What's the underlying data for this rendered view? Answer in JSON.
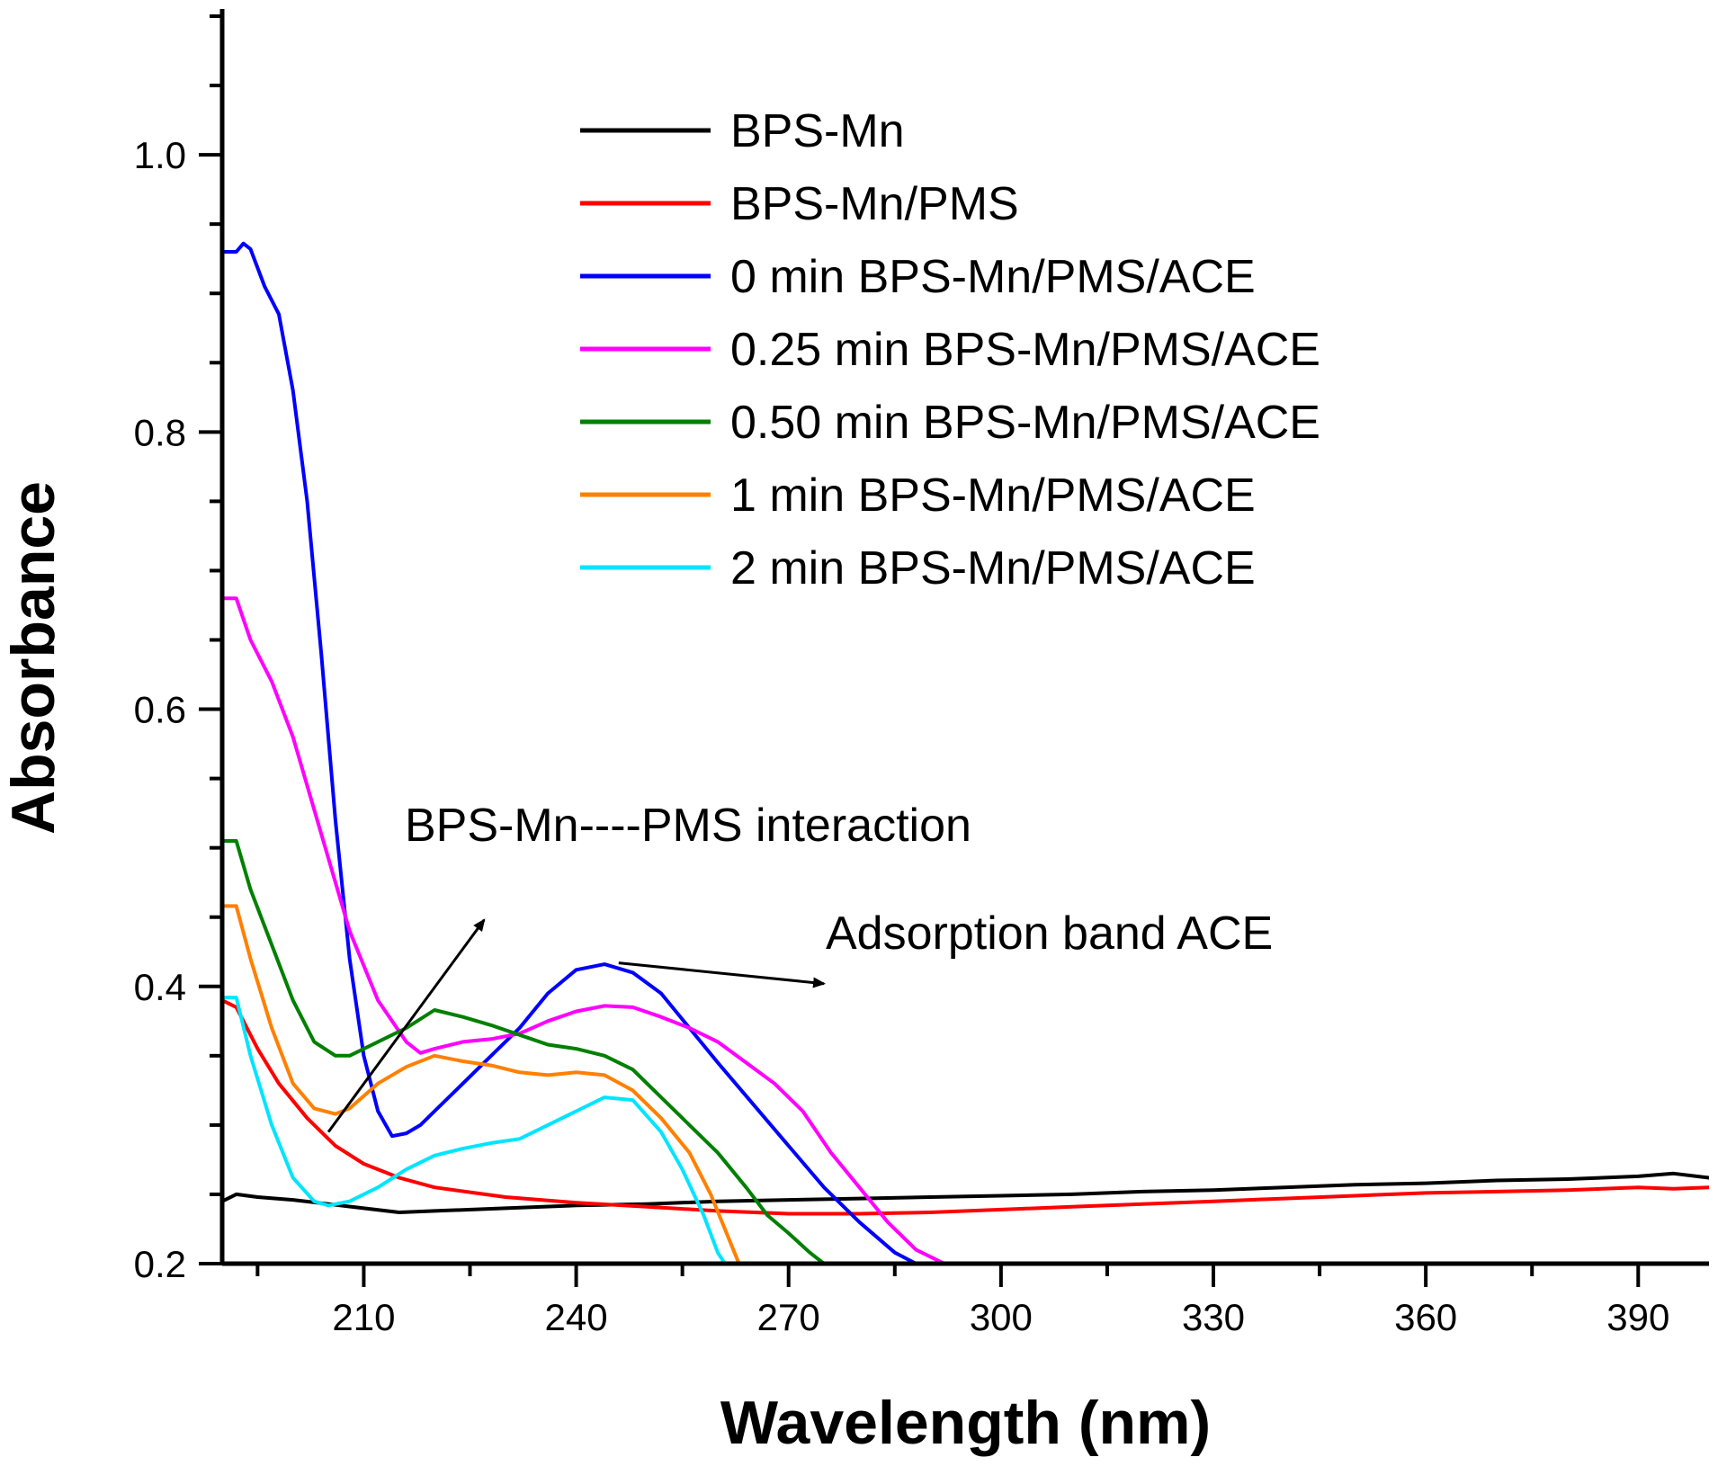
{
  "chart_data": {
    "type": "line",
    "title": "",
    "xlabel": "Wavelength (nm)",
    "ylabel": "Absorbance",
    "xlim": [
      190,
      400
    ],
    "ylim": [
      0.2,
      1.1
    ],
    "xticks": [
      210,
      240,
      270,
      300,
      330,
      360,
      390
    ],
    "yticks": [
      0.2,
      0.4,
      0.6,
      0.8,
      1.0
    ],
    "xtick_labels": [
      "210",
      "240",
      "270",
      "300",
      "330",
      "360",
      "390"
    ],
    "ytick_labels": [
      "0.2",
      "0.4",
      "0.6",
      "0.8",
      "1.0"
    ],
    "grid": false,
    "legend_position": "top-right",
    "series": [
      {
        "name": "BPS-Mn",
        "color": "#000000",
        "points": [
          [
            190,
            0.245
          ],
          [
            192,
            0.25
          ],
          [
            195,
            0.248
          ],
          [
            200,
            0.246
          ],
          [
            205,
            0.243
          ],
          [
            210,
            0.24
          ],
          [
            215,
            0.237
          ],
          [
            220,
            0.238
          ],
          [
            230,
            0.24
          ],
          [
            240,
            0.242
          ],
          [
            250,
            0.243
          ],
          [
            260,
            0.245
          ],
          [
            270,
            0.246
          ],
          [
            280,
            0.247
          ],
          [
            290,
            0.248
          ],
          [
            300,
            0.249
          ],
          [
            310,
            0.25
          ],
          [
            320,
            0.252
          ],
          [
            330,
            0.253
          ],
          [
            340,
            0.255
          ],
          [
            350,
            0.257
          ],
          [
            360,
            0.258
          ],
          [
            370,
            0.26
          ],
          [
            380,
            0.261
          ],
          [
            390,
            0.263
          ],
          [
            395,
            0.265
          ],
          [
            400,
            0.262
          ]
        ]
      },
      {
        "name": "BPS-Mn/PMS",
        "color": "#ff0000",
        "points": [
          [
            190,
            0.39
          ],
          [
            192,
            0.385
          ],
          [
            195,
            0.355
          ],
          [
            198,
            0.33
          ],
          [
            202,
            0.305
          ],
          [
            206,
            0.285
          ],
          [
            210,
            0.272
          ],
          [
            215,
            0.262
          ],
          [
            220,
            0.255
          ],
          [
            230,
            0.248
          ],
          [
            240,
            0.244
          ],
          [
            250,
            0.241
          ],
          [
            260,
            0.238
          ],
          [
            270,
            0.236
          ],
          [
            280,
            0.236
          ],
          [
            290,
            0.237
          ],
          [
            300,
            0.239
          ],
          [
            310,
            0.241
          ],
          [
            320,
            0.243
          ],
          [
            330,
            0.245
          ],
          [
            340,
            0.247
          ],
          [
            350,
            0.249
          ],
          [
            360,
            0.251
          ],
          [
            370,
            0.252
          ],
          [
            380,
            0.253
          ],
          [
            390,
            0.255
          ],
          [
            395,
            0.254
          ],
          [
            400,
            0.255
          ]
        ]
      },
      {
        "name": "0 min BPS-Mn/PMS/ACE",
        "color": "#0000ff",
        "points": [
          [
            190,
            0.93
          ],
          [
            192,
            0.93
          ],
          [
            193,
            0.936
          ],
          [
            194,
            0.932
          ],
          [
            196,
            0.905
          ],
          [
            198,
            0.885
          ],
          [
            200,
            0.83
          ],
          [
            202,
            0.75
          ],
          [
            204,
            0.64
          ],
          [
            206,
            0.52
          ],
          [
            208,
            0.42
          ],
          [
            210,
            0.35
          ],
          [
            212,
            0.31
          ],
          [
            214,
            0.292
          ],
          [
            216,
            0.294
          ],
          [
            218,
            0.3
          ],
          [
            220,
            0.31
          ],
          [
            224,
            0.33
          ],
          [
            228,
            0.35
          ],
          [
            232,
            0.37
          ],
          [
            236,
            0.395
          ],
          [
            240,
            0.412
          ],
          [
            244,
            0.416
          ],
          [
            248,
            0.41
          ],
          [
            252,
            0.395
          ],
          [
            256,
            0.37
          ],
          [
            260,
            0.345
          ],
          [
            265,
            0.315
          ],
          [
            270,
            0.285
          ],
          [
            275,
            0.255
          ],
          [
            280,
            0.23
          ],
          [
            285,
            0.208
          ],
          [
            288,
            0.2
          ]
        ]
      },
      {
        "name": "0.25 min BPS-Mn/PMS/ACE",
        "color": "#ff00ff",
        "points": [
          [
            190,
            0.68
          ],
          [
            192,
            0.68
          ],
          [
            194,
            0.65
          ],
          [
            197,
            0.62
          ],
          [
            200,
            0.58
          ],
          [
            204,
            0.51
          ],
          [
            208,
            0.44
          ],
          [
            212,
            0.39
          ],
          [
            216,
            0.36
          ],
          [
            218,
            0.352
          ],
          [
            220,
            0.355
          ],
          [
            224,
            0.36
          ],
          [
            228,
            0.362
          ],
          [
            232,
            0.366
          ],
          [
            236,
            0.375
          ],
          [
            240,
            0.382
          ],
          [
            244,
            0.386
          ],
          [
            248,
            0.385
          ],
          [
            252,
            0.378
          ],
          [
            256,
            0.37
          ],
          [
            260,
            0.36
          ],
          [
            264,
            0.345
          ],
          [
            268,
            0.33
          ],
          [
            272,
            0.31
          ],
          [
            276,
            0.28
          ],
          [
            280,
            0.255
          ],
          [
            284,
            0.23
          ],
          [
            288,
            0.21
          ],
          [
            292,
            0.2
          ]
        ]
      },
      {
        "name": "0.50 min BPS-Mn/PMS/ACE",
        "color": "#008000",
        "points": [
          [
            190,
            0.505
          ],
          [
            192,
            0.505
          ],
          [
            194,
            0.47
          ],
          [
            197,
            0.43
          ],
          [
            200,
            0.39
          ],
          [
            203,
            0.36
          ],
          [
            206,
            0.35
          ],
          [
            208,
            0.35
          ],
          [
            212,
            0.36
          ],
          [
            216,
            0.37
          ],
          [
            220,
            0.383
          ],
          [
            224,
            0.378
          ],
          [
            228,
            0.372
          ],
          [
            232,
            0.365
          ],
          [
            236,
            0.358
          ],
          [
            240,
            0.355
          ],
          [
            244,
            0.35
          ],
          [
            248,
            0.34
          ],
          [
            252,
            0.32
          ],
          [
            256,
            0.3
          ],
          [
            260,
            0.28
          ],
          [
            264,
            0.255
          ],
          [
            267,
            0.235
          ],
          [
            270,
            0.222
          ],
          [
            273,
            0.208
          ],
          [
            275,
            0.2
          ]
        ]
      },
      {
        "name": "1 min BPS-Mn/PMS/ACE",
        "color": "#ff8000",
        "points": [
          [
            190,
            0.458
          ],
          [
            192,
            0.458
          ],
          [
            194,
            0.42
          ],
          [
            197,
            0.37
          ],
          [
            200,
            0.33
          ],
          [
            203,
            0.312
          ],
          [
            206,
            0.308
          ],
          [
            208,
            0.312
          ],
          [
            212,
            0.33
          ],
          [
            216,
            0.342
          ],
          [
            220,
            0.35
          ],
          [
            224,
            0.346
          ],
          [
            228,
            0.343
          ],
          [
            232,
            0.338
          ],
          [
            236,
            0.336
          ],
          [
            240,
            0.338
          ],
          [
            244,
            0.336
          ],
          [
            248,
            0.325
          ],
          [
            252,
            0.305
          ],
          [
            256,
            0.28
          ],
          [
            259,
            0.25
          ],
          [
            261,
            0.225
          ],
          [
            263,
            0.2
          ]
        ]
      },
      {
        "name": "2 min BPS-Mn/PMS/ACE",
        "color": "#00e5ff",
        "points": [
          [
            190,
            0.392
          ],
          [
            192,
            0.392
          ],
          [
            194,
            0.35
          ],
          [
            197,
            0.3
          ],
          [
            200,
            0.262
          ],
          [
            203,
            0.245
          ],
          [
            205,
            0.242
          ],
          [
            208,
            0.245
          ],
          [
            212,
            0.255
          ],
          [
            216,
            0.268
          ],
          [
            220,
            0.278
          ],
          [
            224,
            0.283
          ],
          [
            228,
            0.287
          ],
          [
            232,
            0.29
          ],
          [
            236,
            0.3
          ],
          [
            240,
            0.31
          ],
          [
            244,
            0.32
          ],
          [
            248,
            0.318
          ],
          [
            252,
            0.295
          ],
          [
            255,
            0.268
          ],
          [
            258,
            0.235
          ],
          [
            260,
            0.208
          ],
          [
            261,
            0.2
          ]
        ]
      }
    ],
    "annotations": [
      {
        "text": "BPS-Mn----PMS interaction",
        "arrow_from": [
          205,
          0.295
        ],
        "arrow_to": [
          227,
          0.448
        ]
      },
      {
        "text": "Adsorption band ACE",
        "arrow_from": [
          246,
          0.417
        ],
        "arrow_to": [
          275,
          0.402
        ]
      }
    ]
  }
}
